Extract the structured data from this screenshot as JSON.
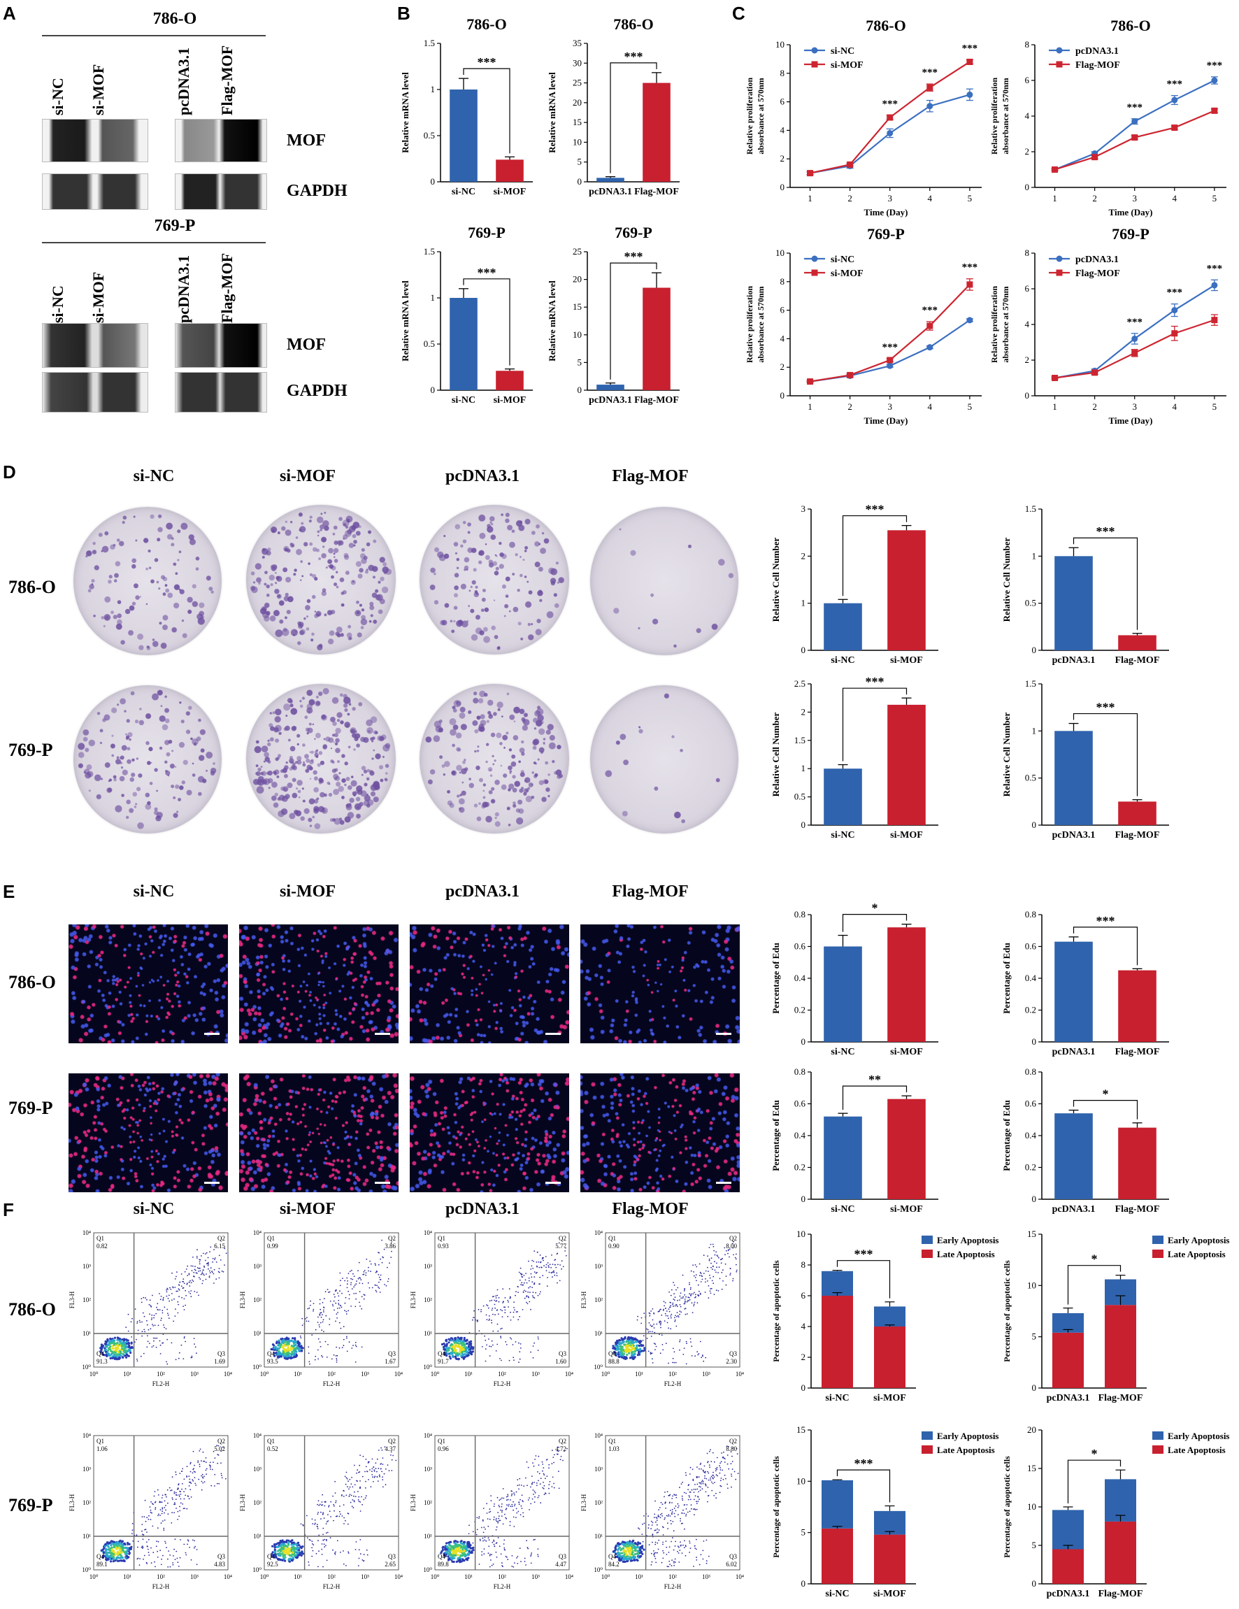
{
  "panels": {
    "A": "A",
    "B": "B",
    "C": "C",
    "D": "D",
    "E": "E",
    "F": "F"
  },
  "panel_a": {
    "cell_lines": [
      "786-O",
      "769-P"
    ],
    "lanes": [
      "si-NC",
      "si-MOF",
      "pcDNA3.1",
      "Flag-MOF"
    ],
    "proteins": [
      "MOF",
      "GAPDH"
    ]
  },
  "groups": [
    "si-NC",
    "si-MOF",
    "pcDNA3.1",
    "Flag-MOF"
  ],
  "cell_lines": [
    "786-O",
    "769-P"
  ],
  "significance": {
    "three": "***",
    "two": "**",
    "one": "*"
  },
  "chart_data": [
    {
      "id": "b1",
      "type": "bar",
      "title": "786-O",
      "ylabel": "Relative mRNA level",
      "categories": [
        "si-NC",
        "si-MOF"
      ],
      "values": [
        1.0,
        0.24
      ],
      "errors": [
        0.12,
        0.03
      ],
      "ylim": [
        0,
        1.5
      ],
      "yticks": [
        0,
        0.5,
        1.0,
        1.5
      ],
      "sig": "***"
    },
    {
      "id": "b2",
      "type": "bar",
      "title": "786-O",
      "ylabel": "Relative mRNA level",
      "categories": [
        "pcDNA3.1",
        "Flag-MOF"
      ],
      "values": [
        1.0,
        25
      ],
      "errors": [
        0.3,
        2.6
      ],
      "ylim": [
        0,
        35
      ],
      "yticks": [
        0,
        5,
        10,
        15,
        20,
        25,
        30,
        35
      ],
      "sig": "***"
    },
    {
      "id": "b3",
      "type": "bar",
      "title": "769-P",
      "ylabel": "Relative mRNA level",
      "categories": [
        "si-NC",
        "si-MOF"
      ],
      "values": [
        1.0,
        0.21
      ],
      "errors": [
        0.1,
        0.02
      ],
      "ylim": [
        0,
        1.5
      ],
      "yticks": [
        0,
        0.5,
        1.0,
        1.5
      ],
      "sig": "***"
    },
    {
      "id": "b4",
      "type": "bar",
      "title": "769-P",
      "ylabel": "Relative mRNA level",
      "categories": [
        "pcDNA3.1",
        "Flag-MOF"
      ],
      "values": [
        1.0,
        18.5
      ],
      "errors": [
        0.3,
        2.7
      ],
      "ylim": [
        0,
        25
      ],
      "yticks": [
        0,
        5,
        10,
        15,
        20,
        25
      ],
      "sig": "***"
    },
    {
      "id": "c1",
      "type": "line",
      "title": "786-O",
      "ylabel": "Relative proliferation absorbance at 570nm",
      "xlabel": "Time (Day)",
      "x": [
        1,
        2,
        3,
        4,
        5
      ],
      "ylim": [
        0,
        10
      ],
      "yticks": [
        0,
        2,
        4,
        6,
        8,
        10
      ],
      "series": [
        {
          "name": "si-NC",
          "values": [
            1.0,
            1.5,
            3.8,
            5.7,
            6.5
          ],
          "errors": [
            0.1,
            0.15,
            0.3,
            0.4,
            0.4
          ]
        },
        {
          "name": "si-MOF",
          "values": [
            1.0,
            1.6,
            4.9,
            7.0,
            8.8
          ],
          "errors": [
            0.1,
            0.1,
            0.15,
            0.25,
            0.15
          ]
        }
      ],
      "sig_x": [
        3,
        4,
        5
      ],
      "sig": "***"
    },
    {
      "id": "c2",
      "type": "line",
      "title": "786-O",
      "ylabel": "Relative proliferation absorbance at 570nm",
      "xlabel": "Time (Day)",
      "x": [
        1,
        2,
        3,
        4,
        5
      ],
      "ylim": [
        0,
        8
      ],
      "yticks": [
        0,
        2,
        4,
        6,
        8
      ],
      "series": [
        {
          "name": "pcDNA3.1",
          "values": [
            1.0,
            1.9,
            3.7,
            4.9,
            6.0
          ],
          "errors": [
            0.05,
            0.1,
            0.15,
            0.25,
            0.2
          ]
        },
        {
          "name": "Flag-MOF",
          "values": [
            1.0,
            1.7,
            2.8,
            3.35,
            4.3
          ],
          "errors": [
            0.05,
            0.1,
            0.1,
            0.1,
            0.1
          ]
        }
      ],
      "sig_x": [
        3,
        4,
        5
      ],
      "sig": "***"
    },
    {
      "id": "c3",
      "type": "line",
      "title": "769-P",
      "ylabel": "Relative proliferation absorbance at 570nm",
      "xlabel": "Time (Day)",
      "x": [
        1,
        2,
        3,
        4,
        5
      ],
      "ylim": [
        0,
        10
      ],
      "yticks": [
        0,
        2,
        4,
        6,
        8,
        10
      ],
      "series": [
        {
          "name": "si-NC",
          "values": [
            1.0,
            1.4,
            2.1,
            3.4,
            5.3
          ],
          "errors": [
            0.05,
            0.1,
            0.1,
            0.1,
            0.1
          ]
        },
        {
          "name": "si-MOF",
          "values": [
            1.0,
            1.45,
            2.5,
            4.9,
            7.8
          ],
          "errors": [
            0.05,
            0.1,
            0.1,
            0.3,
            0.4
          ]
        }
      ],
      "sig_x": [
        3,
        4,
        5
      ],
      "sig": "***"
    },
    {
      "id": "c4",
      "type": "line",
      "title": "769-P",
      "ylabel": "Relative proliferation absorbance at 570nm",
      "xlabel": "Time (Day)",
      "x": [
        1,
        2,
        3,
        4,
        5
      ],
      "ylim": [
        0,
        8
      ],
      "yticks": [
        0,
        2,
        4,
        6,
        8
      ],
      "series": [
        {
          "name": "pcDNA3.1",
          "values": [
            1.0,
            1.4,
            3.2,
            4.8,
            6.2
          ],
          "errors": [
            0.05,
            0.1,
            0.3,
            0.35,
            0.3
          ]
        },
        {
          "name": "Flag-MOF",
          "values": [
            1.0,
            1.3,
            2.4,
            3.5,
            4.25
          ],
          "errors": [
            0.05,
            0.1,
            0.2,
            0.4,
            0.3
          ]
        }
      ],
      "sig_x": [
        3,
        4,
        5
      ],
      "sig": "***"
    },
    {
      "id": "d1",
      "type": "bar",
      "ylabel": "Relative Cell Number",
      "categories": [
        "si-NC",
        "si-MOF"
      ],
      "values": [
        1.0,
        2.55
      ],
      "errors": [
        0.08,
        0.1
      ],
      "ylim": [
        0,
        3
      ],
      "yticks": [
        0,
        1,
        2,
        3
      ],
      "sig": "***"
    },
    {
      "id": "d2",
      "type": "bar",
      "ylabel": "Relative Cell Number",
      "categories": [
        "pcDNA3.1",
        "Flag-MOF"
      ],
      "values": [
        1.0,
        0.16
      ],
      "errors": [
        0.09,
        0.02
      ],
      "ylim": [
        0,
        1.5
      ],
      "yticks": [
        0,
        0.5,
        1.0,
        1.5
      ],
      "sig": "***"
    },
    {
      "id": "d3",
      "type": "bar",
      "ylabel": "Relative Cell Number",
      "categories": [
        "si-NC",
        "si-MOF"
      ],
      "values": [
        1.0,
        2.13
      ],
      "errors": [
        0.07,
        0.12
      ],
      "ylim": [
        0,
        2.5
      ],
      "yticks": [
        0,
        0.5,
        1.0,
        1.5,
        2.0,
        2.5
      ],
      "sig": "***"
    },
    {
      "id": "d4",
      "type": "bar",
      "ylabel": "Relative Cell Number",
      "categories": [
        "pcDNA3.1",
        "Flag-MOF"
      ],
      "values": [
        1.0,
        0.25
      ],
      "errors": [
        0.08,
        0.02
      ],
      "ylim": [
        0,
        1.5
      ],
      "yticks": [
        0,
        0.5,
        1.0,
        1.5
      ],
      "sig": "***"
    },
    {
      "id": "e1",
      "type": "bar",
      "ylabel": "Percentage of Edu",
      "categories": [
        "si-NC",
        "si-MOF"
      ],
      "values": [
        0.6,
        0.72
      ],
      "errors": [
        0.07,
        0.02
      ],
      "ylim": [
        0,
        0.8
      ],
      "yticks": [
        0,
        0.2,
        0.4,
        0.6,
        0.8
      ],
      "sig": "*"
    },
    {
      "id": "e2",
      "type": "bar",
      "ylabel": "Percentage of Edu",
      "categories": [
        "pcDNA3.1",
        "Flag-MOF"
      ],
      "values": [
        0.63,
        0.45
      ],
      "errors": [
        0.03,
        0.01
      ],
      "ylim": [
        0,
        0.8
      ],
      "yticks": [
        0,
        0.2,
        0.4,
        0.6,
        0.8
      ],
      "sig": "***"
    },
    {
      "id": "e3",
      "type": "bar",
      "ylabel": "Percentage of Edu",
      "categories": [
        "si-NC",
        "si-MOF"
      ],
      "values": [
        0.52,
        0.63
      ],
      "errors": [
        0.02,
        0.02
      ],
      "ylim": [
        0,
        0.8
      ],
      "yticks": [
        0,
        0.2,
        0.4,
        0.6,
        0.8
      ],
      "sig": "**"
    },
    {
      "id": "e4",
      "type": "bar",
      "ylabel": "Percentage of Edu",
      "categories": [
        "pcDNA3.1",
        "Flag-MOF"
      ],
      "values": [
        0.54,
        0.45
      ],
      "errors": [
        0.02,
        0.03
      ],
      "ylim": [
        0,
        0.8
      ],
      "yticks": [
        0,
        0.2,
        0.4,
        0.6,
        0.8
      ],
      "sig": "*"
    },
    {
      "id": "f1",
      "type": "stacked-bar",
      "ylabel": "Percentage of apoptotic  cells",
      "categories": [
        "si-NC",
        "si-MOF"
      ],
      "legend": [
        "Early Apoptosis",
        "Late Apoptosis"
      ],
      "late": [
        6.0,
        4.0
      ],
      "total": [
        7.6,
        5.3
      ],
      "late_err": [
        0.2,
        0.1
      ],
      "total_err": [
        0.05,
        0.3
      ],
      "ylim": [
        0,
        10
      ],
      "yticks": [
        0,
        2,
        4,
        6,
        8,
        10
      ],
      "sig": "***"
    },
    {
      "id": "f2",
      "type": "stacked-bar",
      "ylabel": "Percentage of apoptotic  cells",
      "categories": [
        "pcDNA3.1",
        "Flag-MOF"
      ],
      "legend": [
        "Early Apoptosis",
        "Late Apoptosis"
      ],
      "late": [
        5.4,
        8.1
      ],
      "total": [
        7.3,
        10.6
      ],
      "late_err": [
        0.3,
        0.9
      ],
      "total_err": [
        0.5,
        0.4
      ],
      "ylim": [
        0,
        15
      ],
      "yticks": [
        0,
        5,
        10,
        15
      ],
      "sig": "*"
    },
    {
      "id": "f3",
      "type": "stacked-bar",
      "ylabel": "Percentage of apoptotic  cells",
      "categories": [
        "si-NC",
        "si-MOF"
      ],
      "legend": [
        "Early Apoptosis",
        "Late Apoptosis"
      ],
      "late": [
        5.4,
        4.8
      ],
      "total": [
        10.1,
        7.1
      ],
      "late_err": [
        0.2,
        0.3
      ],
      "total_err": [
        0.05,
        0.5
      ],
      "ylim": [
        0,
        15
      ],
      "yticks": [
        0,
        5,
        10,
        15
      ],
      "sig": "***"
    },
    {
      "id": "f4",
      "type": "stacked-bar",
      "ylabel": "Percentage of apoptotic  cells",
      "categories": [
        "pcDNA3.1",
        "Flag-MOF"
      ],
      "legend": [
        "Early Apoptosis",
        "Late Apoptosis"
      ],
      "late": [
        4.5,
        8.1
      ],
      "total": [
        9.6,
        13.6
      ],
      "late_err": [
        0.5,
        0.8
      ],
      "total_err": [
        0.4,
        1.2
      ],
      "ylim": [
        0,
        20
      ],
      "yticks": [
        0,
        5,
        10,
        15,
        20
      ],
      "sig": "*"
    }
  ],
  "flow": {
    "axis_x": "FL2-H",
    "axis_y": "FL3-H",
    "quad_labels": [
      "Q1",
      "Q2",
      "Q3",
      "Q4"
    ],
    "tick_labels": [
      "10⁰",
      "10¹",
      "10²",
      "10³",
      "10⁴"
    ],
    "plots": [
      {
        "q1": "0.82",
        "q2": "6.15",
        "q3": "1.69",
        "q4": "91.3"
      },
      {
        "q1": "0.99",
        "q2": "3.86",
        "q3": "1.67",
        "q4": "93.5"
      },
      {
        "q1": "0.93",
        "q2": "5.77",
        "q3": "1.60",
        "q4": "91.7"
      },
      {
        "q1": "0.90",
        "q2": "8.00",
        "q3": "2.30",
        "q4": "88.8"
      },
      {
        "q1": "1.06",
        "q2": "5.02",
        "q3": "4.83",
        "q4": "89.1"
      },
      {
        "q1": "0.52",
        "q2": "4.37",
        "q3": "2.65",
        "q4": "92.5"
      },
      {
        "q1": "0.96",
        "q2": "4.72",
        "q3": "4.47",
        "q4": "89.8"
      },
      {
        "q1": "1.03",
        "q2": "8.80",
        "q3": "6.02",
        "q4": "84.2"
      }
    ]
  },
  "colors": {
    "blue": "#2f63ad",
    "red": "#c8202f",
    "blue_line": "#3b6fc0",
    "red_line": "#cc2530"
  }
}
